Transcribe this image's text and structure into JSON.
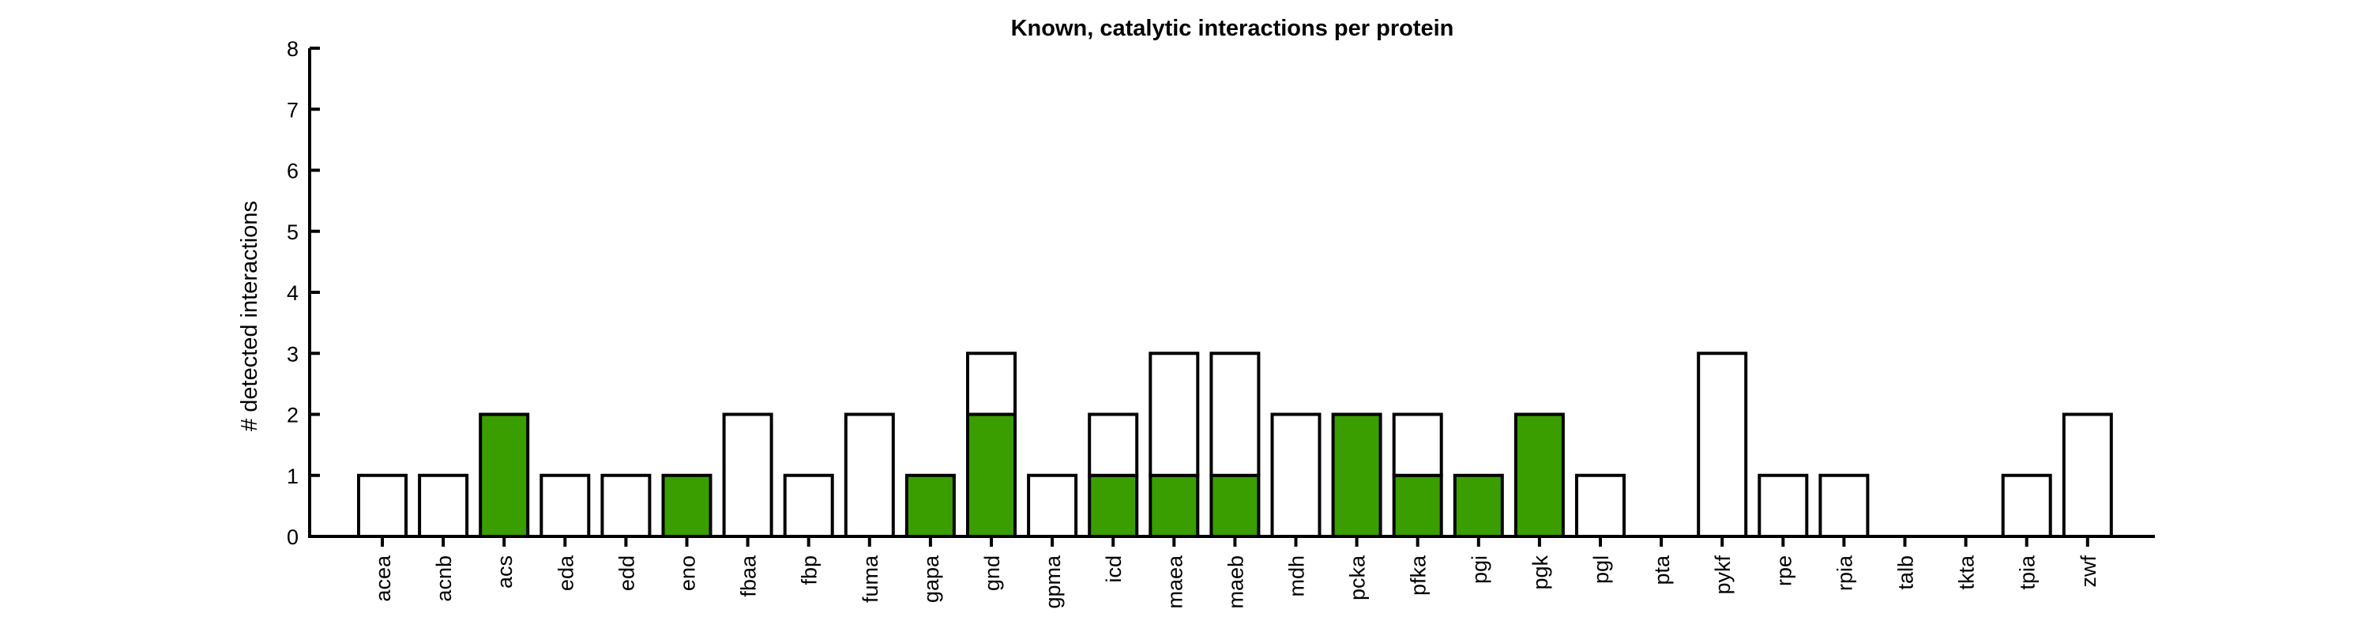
{
  "chart_data": {
    "type": "bar",
    "title": "Known, catalytic interactions per protein",
    "xlabel": "",
    "ylabel": "# detected interactions",
    "ylim": [
      0,
      8
    ],
    "yticks": [
      "0",
      "1",
      "2",
      "3",
      "4",
      "5",
      "6",
      "7",
      "8"
    ],
    "grid": false,
    "categories": [
      "acea",
      "acnb",
      "acs",
      "eda",
      "edd",
      "eno",
      "fbaa",
      "fbp",
      "fuma",
      "gapa",
      "gnd",
      "gpma",
      "icd",
      "maea",
      "maeb",
      "mdh",
      "pcka",
      "pfka",
      "pgi",
      "pgk",
      "pgl",
      "pta",
      "pykf",
      "rpe",
      "rpia",
      "talb",
      "tkta",
      "tpia",
      "zwf"
    ],
    "series": [
      {
        "color": "#3a9e00",
        "values": [
          0,
          0,
          2,
          0,
          0,
          1,
          0,
          0,
          0,
          1,
          2,
          0,
          1,
          1,
          1,
          0,
          2,
          1,
          1,
          2,
          0,
          0,
          0,
          0,
          0,
          0,
          0,
          0,
          0
        ]
      },
      {
        "color": "#ffffff",
        "values": [
          1,
          1,
          0,
          1,
          1,
          0,
          2,
          1,
          2,
          0,
          1,
          1,
          1,
          2,
          2,
          2,
          0,
          1,
          0,
          0,
          1,
          0,
          3,
          1,
          1,
          0,
          0,
          1,
          2
        ]
      }
    ],
    "stacked": true,
    "colors": {
      "filled": "#3a9e00",
      "outline": "#000000",
      "background": "#ffffff"
    }
  }
}
